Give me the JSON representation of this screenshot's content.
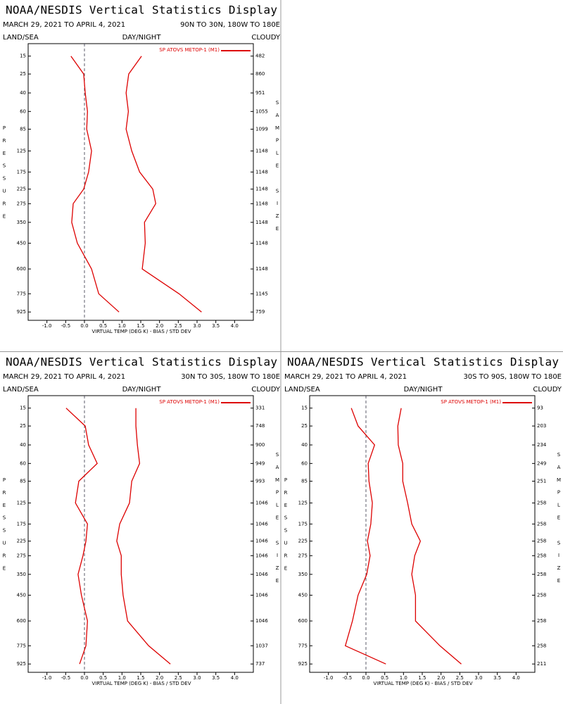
{
  "chart_data": [
    {
      "type": "profile",
      "title": "NOAA/NESDIS Vertical Statistics Display",
      "subtitle": "MARCH 29, 2021 TO APRIL 4, 2021",
      "region": "90N TO 30N, 180W TO 180E",
      "left_label": "LAND/SEA",
      "center_label": "DAY/NIGHT",
      "right_label": "CLOUDY",
      "ylabel": "PRESSURE",
      "y2label": "SAMPLE SIZE",
      "xlabel": "VIRTUAL TEMP (DEG K) - BIAS / STD DEV",
      "y": [
        15,
        25,
        40,
        60,
        85,
        125,
        175,
        225,
        275,
        350,
        450,
        600,
        775,
        925
      ],
      "sample_size": [
        482,
        860,
        951,
        1055,
        1099,
        1148,
        1148,
        1148,
        1148,
        1148,
        1148,
        1148,
        1145,
        759
      ],
      "series": [
        {
          "name": "SP ATOVS METOP-1 (M1)",
          "color": "#dd0000",
          "values": [
            -0.36,
            -0.02,
            0.02,
            0.08,
            0.06,
            0.19,
            0.11,
            -0.02,
            -0.3,
            -0.34,
            -0.19,
            0.19,
            0.38,
            0.92
          ],
          "std_dev": [
            1.52,
            1.18,
            1.11,
            1.17,
            1.11,
            1.26,
            1.47,
            1.82,
            1.9,
            1.6,
            1.62,
            1.54,
            2.52,
            3.12
          ]
        }
      ],
      "xlim": [
        -1.5,
        4.5
      ],
      "ylim": [
        10,
        1000
      ],
      "reference_line": 0,
      "xticks": [
        {
          "value": -1,
          "label": "-1.0"
        },
        {
          "value": -0.5,
          "label": "-0.5"
        },
        {
          "value": 0,
          "label": "0.0"
        },
        0.5,
        {
          "value": 1,
          "label": "1.0"
        },
        1.5,
        {
          "value": 2,
          "label": "2.0"
        },
        2.5,
        {
          "value": 3,
          "label": "3.0"
        },
        3.5,
        {
          "value": 4,
          "label": "4.0"
        }
      ]
    },
    {
      "type": "profile",
      "title": "NOAA/NESDIS Vertical Statistics Display",
      "subtitle": "MARCH 29, 2021 TO APRIL 4, 2021",
      "region": "30N TO 30S, 180W TO 180E",
      "left_label": "LAND/SEA",
      "center_label": "DAY/NIGHT",
      "right_label": "CLOUDY",
      "ylabel": "PRESSURE",
      "y2label": "SAMPLE SIZE",
      "xlabel": "VIRTUAL TEMP (DEG K) - BIAS / STD DEV",
      "y": [
        15,
        25,
        40,
        60,
        85,
        125,
        175,
        225,
        275,
        350,
        450,
        600,
        775,
        925
      ],
      "sample_size": [
        331,
        748,
        900,
        949,
        993,
        1046,
        1046,
        1046,
        1046,
        1046,
        1046,
        1046,
        1037,
        737
      ],
      "series": [
        {
          "name": "SP ATOVS METOP-1 (M1)",
          "color": "#dd0000",
          "values": [
            -0.49,
            0.02,
            0.11,
            0.34,
            -0.15,
            -0.24,
            0.08,
            0.04,
            -0.04,
            -0.17,
            -0.08,
            0.08,
            0.04,
            -0.13
          ],
          "std_dev": [
            1.37,
            1.37,
            1.41,
            1.47,
            1.26,
            1.2,
            0.94,
            0.86,
            0.98,
            0.98,
            1.03,
            1.15,
            1.71,
            2.29
          ]
        }
      ],
      "xlim": [
        -1.5,
        4.5
      ],
      "ylim": [
        10,
        1000
      ],
      "reference_line": 0,
      "xticks": [
        {
          "value": -1,
          "label": "-1.0"
        },
        {
          "value": -0.5,
          "label": "-0.5"
        },
        {
          "value": 0,
          "label": "0.0"
        },
        0.5,
        {
          "value": 1,
          "label": "1.0"
        },
        1.5,
        {
          "value": 2,
          "label": "2.0"
        },
        2.5,
        {
          "value": 3,
          "label": "3.0"
        },
        3.5,
        {
          "value": 4,
          "label": "4.0"
        }
      ]
    },
    {
      "type": "profile",
      "title": "NOAA/NESDIS Vertical Statistics Display",
      "subtitle": "MARCH 29, 2021 TO APRIL 4, 2021",
      "region": "30S TO 90S, 180W TO 180E",
      "left_label": "LAND/SEA",
      "center_label": "DAY/NIGHT",
      "right_label": "CLOUDY",
      "ylabel": "PRESSURE",
      "y2label": "SAMPLE SIZE",
      "xlabel": "VIRTUAL TEMP (DEG K) - BIAS / STD DEV",
      "y": [
        15,
        25,
        40,
        60,
        85,
        125,
        175,
        225,
        275,
        350,
        450,
        600,
        775,
        925
      ],
      "sample_size": [
        93,
        203,
        234,
        249,
        251,
        258,
        258,
        258,
        258,
        258,
        258,
        258,
        258,
        211
      ],
      "series": [
        {
          "name": "SP ATOVS METOP-1 (M1)",
          "color": "#dd0000",
          "values": [
            -0.39,
            -0.21,
            0.23,
            0.06,
            0.08,
            0.17,
            0.13,
            0.04,
            0.11,
            0.02,
            -0.21,
            -0.36,
            -0.55,
            0.53
          ],
          "std_dev": [
            0.94,
            0.85,
            0.86,
            0.98,
            0.98,
            1.11,
            1.22,
            1.45,
            1.3,
            1.22,
            1.32,
            1.32,
            1.97,
            2.54
          ]
        }
      ],
      "xlim": [
        -1.5,
        4.5
      ],
      "ylim": [
        10,
        1000
      ],
      "reference_line": 0,
      "xticks": [
        {
          "value": -1,
          "label": "-1.0"
        },
        {
          "value": -0.5,
          "label": "-0.5"
        },
        {
          "value": 0,
          "label": "0.0"
        },
        0.5,
        {
          "value": 1,
          "label": "1.0"
        },
        1.5,
        {
          "value": 2,
          "label": "2.0"
        },
        2.5,
        {
          "value": 3,
          "label": "3.0"
        },
        3.5,
        {
          "value": 4,
          "label": "4.0"
        }
      ]
    }
  ]
}
